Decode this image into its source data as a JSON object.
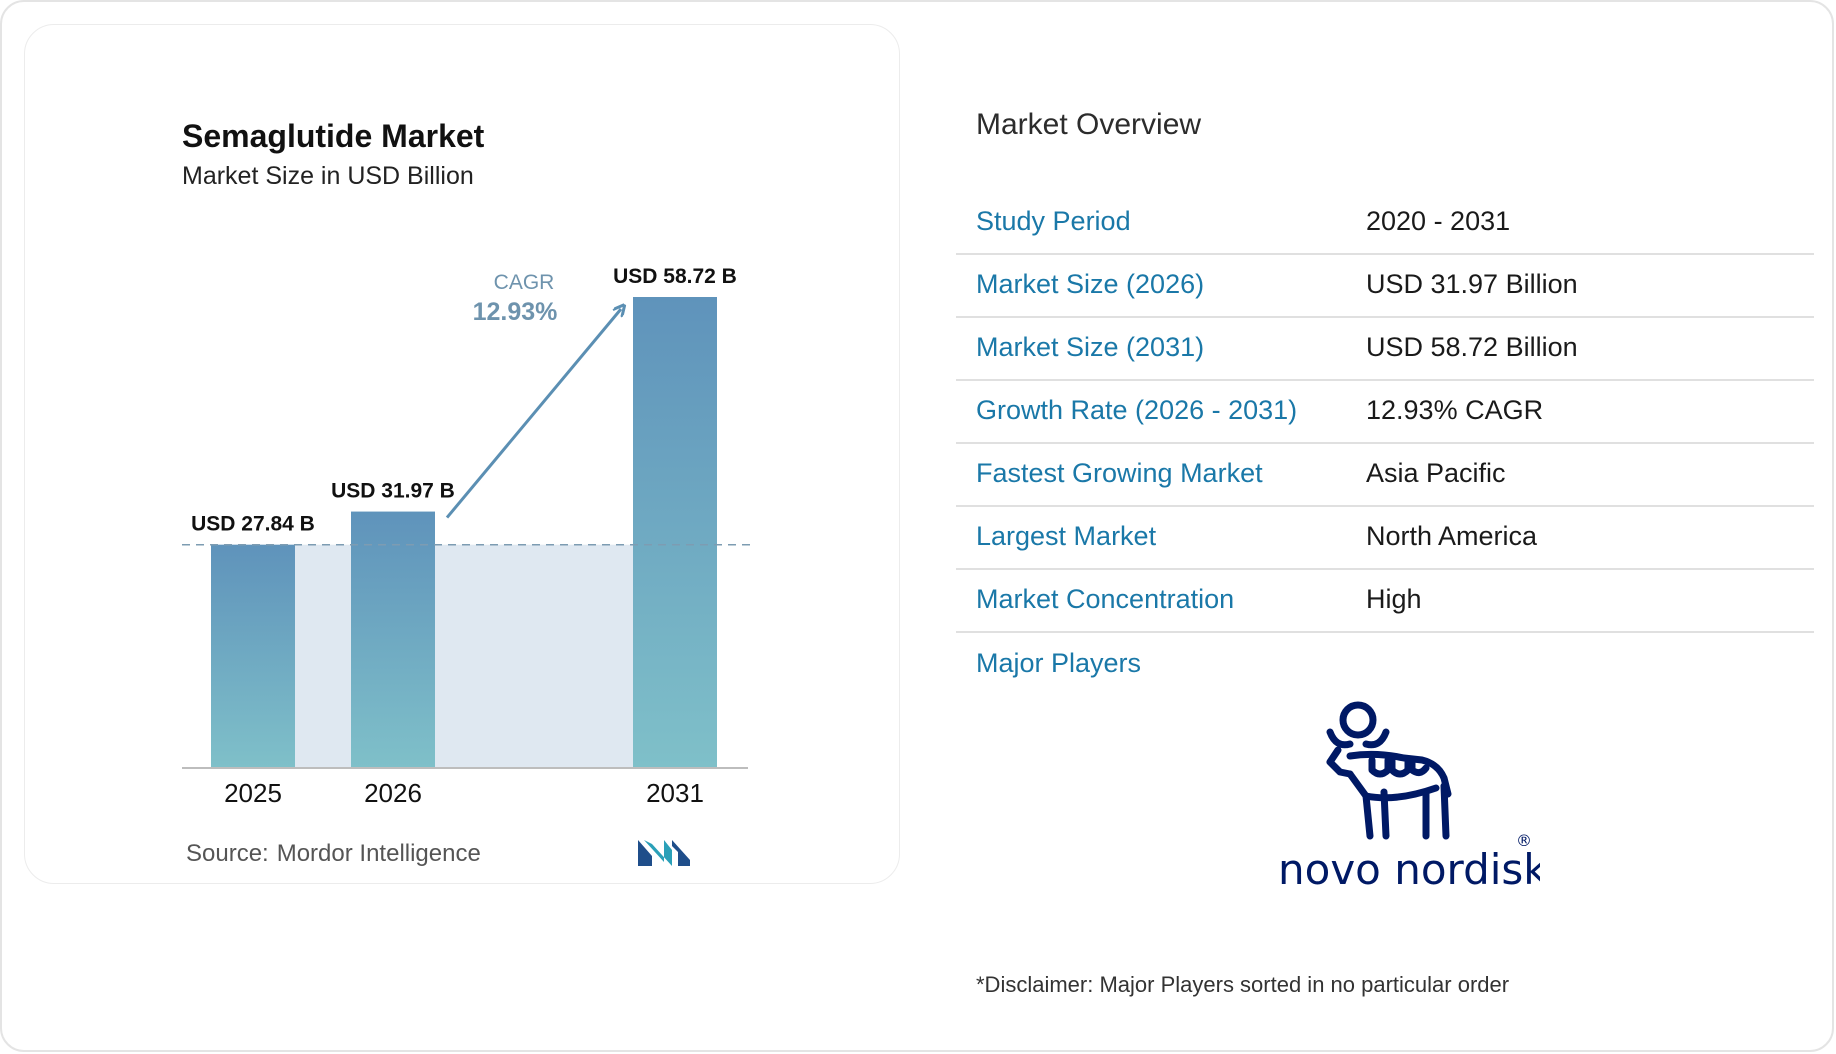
{
  "chart_data": {
    "type": "bar",
    "title": "Semaglutide Market",
    "subtitle": "Market Size in USD Billion",
    "categories": [
      "2025",
      "2026",
      "2031"
    ],
    "values": [
      27.84,
      31.97,
      58.72
    ],
    "data_labels": [
      "USD 27.84 B",
      "USD 31.97 B",
      "USD 58.72 B"
    ],
    "cagr_label": "CAGR",
    "cagr_value": "12.93%",
    "reference_line": 27.84,
    "ylim": [
      0,
      58.72
    ],
    "grid": false,
    "bar_color_top": "#5f93bb",
    "bar_color_bottom": "#7fc0c9",
    "band_color": "#dfe8f1",
    "arrow_color": "#5b8fb3"
  },
  "source": {
    "label": "Source:",
    "name": "Mordor Intelligence"
  },
  "overview": {
    "title": "Market Overview",
    "rows": [
      {
        "label": "Study Period",
        "value": "2020 - 2031"
      },
      {
        "label": "Market Size (2026)",
        "value": "USD 31.97 Billion"
      },
      {
        "label": "Market Size (2031)",
        "value": "USD 58.72 Billion"
      },
      {
        "label": "Growth Rate (2026 - 2031)",
        "value": "12.93% CAGR"
      },
      {
        "label": "Fastest Growing Market",
        "value": "Asia Pacific"
      },
      {
        "label": "Largest Market",
        "value": "North America"
      },
      {
        "label": "Market Concentration",
        "value": "High"
      }
    ],
    "players_label": "Major Players",
    "players": [
      "novo nordisk"
    ],
    "disclaimer": "*Disclaimer: Major Players sorted in no particular order"
  },
  "logos": {
    "source_logo_icon": "mordor-intelligence-logo-icon",
    "player_logo_icon": "novo-nordisk-bull-logo-icon",
    "player_logo_color": "#001965"
  }
}
